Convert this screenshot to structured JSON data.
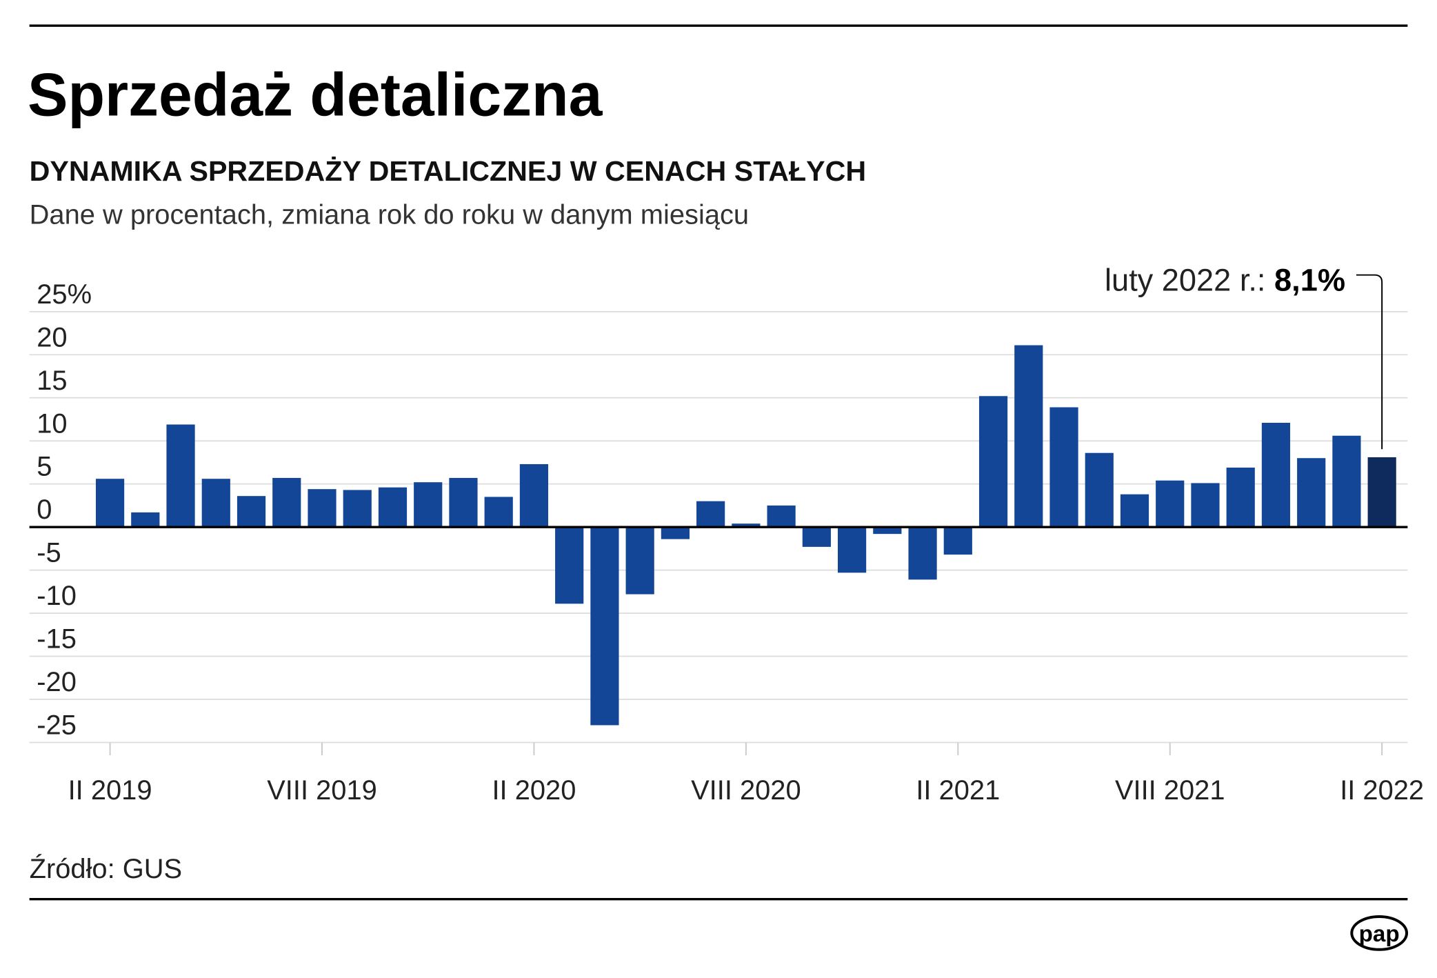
{
  "header": {
    "title": "Sprzedaż detaliczna",
    "subtitle": "DYNAMIKA SPRZEDAŻY DETALICZNEJ W CENACH STAŁYCH",
    "description": "Dane w procentach, zmiana rok do roku w danym miesiącu"
  },
  "annotation": {
    "label": "luty 2022 r.: ",
    "value": "8,1%"
  },
  "footer": {
    "source": "Źródło: GUS",
    "logo": "pap"
  },
  "colors": {
    "bar": "#134696",
    "highlight": "#0f2a5c",
    "zero_line": "#000000"
  },
  "chart_data": {
    "type": "bar",
    "ylim": [
      -25,
      25
    ],
    "grid": true,
    "y_ticks": [
      "25%",
      "20",
      "15",
      "10",
      "5",
      "0",
      "-5",
      "-10",
      "-15",
      "-20",
      "-25"
    ],
    "y_tick_values": [
      25,
      20,
      15,
      10,
      5,
      0,
      -5,
      -10,
      -15,
      -20,
      -25
    ],
    "x_tick_labels": [
      {
        "index": 0,
        "label": "II 2019"
      },
      {
        "index": 6,
        "label": "VIII 2019"
      },
      {
        "index": 12,
        "label": "II 2020"
      },
      {
        "index": 18,
        "label": "VIII 2020"
      },
      {
        "index": 24,
        "label": "II 2021"
      },
      {
        "index": 30,
        "label": "VIII 2021"
      },
      {
        "index": 36,
        "label": "II 2022"
      }
    ],
    "categories": [
      "II 2019",
      "III 2019",
      "IV 2019",
      "V 2019",
      "VI 2019",
      "VII 2019",
      "VIII 2019",
      "IX 2019",
      "X 2019",
      "XI 2019",
      "XII 2019",
      "I 2020",
      "II 2020",
      "III 2020",
      "IV 2020",
      "V 2020",
      "VI 2020",
      "VII 2020",
      "VIII 2020",
      "IX 2020",
      "X 2020",
      "XI 2020",
      "XII 2020",
      "I 2021",
      "II 2021",
      "III 2021",
      "IV 2021",
      "V 2021",
      "VI 2021",
      "VII 2021",
      "VIII 2021",
      "IX 2021",
      "X 2021",
      "XI 2021",
      "XII 2021",
      "I 2022",
      "II 2022"
    ],
    "values": [
      5.6,
      1.7,
      11.9,
      5.6,
      3.6,
      5.7,
      4.4,
      4.3,
      4.6,
      5.2,
      5.7,
      3.5,
      7.3,
      -8.9,
      -23.0,
      -7.8,
      -1.4,
      3.0,
      0.4,
      2.5,
      -2.3,
      -5.3,
      -0.8,
      -6.1,
      -3.2,
      15.2,
      21.1,
      13.9,
      8.6,
      3.8,
      5.4,
      5.1,
      6.9,
      12.1,
      8.0,
      10.6,
      8.1
    ],
    "highlight_index": 36
  }
}
